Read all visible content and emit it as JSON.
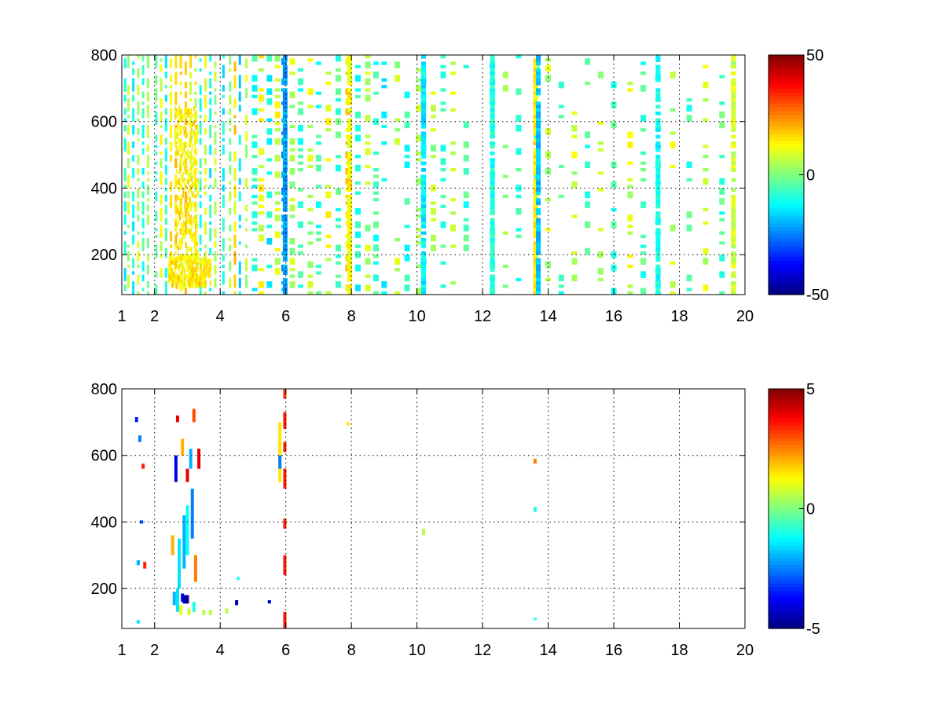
{
  "chart_data": [
    {
      "type": "heatmap",
      "title": "",
      "xlabel": "",
      "ylabel": "",
      "xlim": [
        1,
        20
      ],
      "ylim": [
        80,
        800
      ],
      "grid": true,
      "x_ticks": [
        1,
        2,
        4,
        6,
        8,
        10,
        12,
        14,
        16,
        18,
        20
      ],
      "y_ticks": [
        200,
        400,
        600,
        800
      ],
      "colorbar": {
        "range": [
          -50,
          50
        ],
        "ticks": [
          50,
          0,
          -50
        ],
        "colormap": "jet",
        "placement": "right"
      },
      "sparse_columns": [
        {
          "x": 1.1,
          "level": -10
        },
        {
          "x": 1.2,
          "level": 4
        },
        {
          "x": 1.35,
          "level": -12
        },
        {
          "x": 1.5,
          "level": 6
        },
        {
          "x": 1.65,
          "level": -8
        },
        {
          "x": 1.8,
          "level": 5
        },
        {
          "x": 2.05,
          "level": -6
        },
        {
          "x": 2.2,
          "level": 8
        },
        {
          "x": 2.35,
          "level": -10
        },
        {
          "x": 2.5,
          "level": 12
        },
        {
          "x": 2.65,
          "level": 15
        },
        {
          "x": 2.8,
          "level": 14
        },
        {
          "x": 2.95,
          "level": 16
        },
        {
          "x": 3.1,
          "level": 12
        },
        {
          "x": 3.25,
          "level": 10
        },
        {
          "x": 3.4,
          "level": -8
        },
        {
          "x": 3.55,
          "level": 6
        },
        {
          "x": 3.7,
          "level": -10
        },
        {
          "x": 3.85,
          "level": 5
        },
        {
          "x": 4.1,
          "level": -12
        },
        {
          "x": 4.3,
          "level": 3
        },
        {
          "x": 4.45,
          "level": 14
        },
        {
          "x": 4.6,
          "level": -14
        },
        {
          "x": 4.8,
          "level": 6
        },
        {
          "x": 5.05,
          "level": -9
        },
        {
          "x": 5.25,
          "level": 10
        },
        {
          "x": 5.5,
          "level": -11
        },
        {
          "x": 5.75,
          "level": 8
        },
        {
          "x": 5.95,
          "level": -22
        },
        {
          "x": 6.2,
          "level": 5
        },
        {
          "x": 6.45,
          "level": -7
        },
        {
          "x": 6.75,
          "level": 6
        },
        {
          "x": 7.0,
          "level": -8
        },
        {
          "x": 7.3,
          "level": 9
        },
        {
          "x": 7.6,
          "level": -6
        },
        {
          "x": 7.9,
          "level": 14
        },
        {
          "x": 8.2,
          "level": -9
        },
        {
          "x": 8.5,
          "level": 5
        },
        {
          "x": 8.75,
          "level": -7
        },
        {
          "x": 9.0,
          "level": -12
        },
        {
          "x": 9.4,
          "level": 6
        },
        {
          "x": 9.7,
          "level": -8
        },
        {
          "x": 10.05,
          "level": 7
        },
        {
          "x": 10.2,
          "level": -14
        },
        {
          "x": 10.5,
          "level": 5
        },
        {
          "x": 10.8,
          "level": -6
        },
        {
          "x": 11.1,
          "level": 6
        },
        {
          "x": 11.5,
          "level": -7
        },
        {
          "x": 12.3,
          "level": -10
        },
        {
          "x": 12.7,
          "level": 5
        },
        {
          "x": 13.1,
          "level": -6
        },
        {
          "x": 13.65,
          "level": -14
        },
        {
          "x": 14.0,
          "level": 6
        },
        {
          "x": 14.4,
          "level": -7
        },
        {
          "x": 14.8,
          "level": 7
        },
        {
          "x": 15.2,
          "level": -6
        },
        {
          "x": 15.6,
          "level": 6
        },
        {
          "x": 16.0,
          "level": -8
        },
        {
          "x": 16.5,
          "level": 8
        },
        {
          "x": 16.9,
          "level": -6
        },
        {
          "x": 17.35,
          "level": -10
        },
        {
          "x": 17.8,
          "level": 6
        },
        {
          "x": 18.3,
          "level": -7
        },
        {
          "x": 18.8,
          "level": 6
        },
        {
          "x": 19.3,
          "level": -6
        },
        {
          "x": 19.65,
          "level": 7
        }
      ],
      "dense_bands": [
        {
          "x": 5.98,
          "level": -22
        },
        {
          "x": 7.95,
          "level": 12
        },
        {
          "x": 10.2,
          "level": -14
        },
        {
          "x": 12.3,
          "level": -10
        },
        {
          "x": 13.62,
          "level": 14
        },
        {
          "x": 13.7,
          "level": -18
        },
        {
          "x": 17.35,
          "level": -11
        },
        {
          "x": 19.65,
          "level": 8
        }
      ],
      "blobs": [
        {
          "x0": 2.4,
          "x1": 3.7,
          "y0": 110,
          "y1": 200,
          "level": 15
        },
        {
          "x0": 2.6,
          "x1": 3.3,
          "y0": 200,
          "y1": 650,
          "level": 14
        }
      ]
    },
    {
      "type": "heatmap",
      "title": "",
      "xlabel": "",
      "ylabel": "",
      "xlim": [
        1,
        20
      ],
      "ylim": [
        80,
        800
      ],
      "grid": true,
      "x_ticks": [
        1,
        2,
        4,
        6,
        8,
        10,
        12,
        14,
        16,
        18,
        20
      ],
      "y_ticks": [
        200,
        400,
        600,
        800
      ],
      "colorbar": {
        "range": [
          -5,
          5
        ],
        "ticks": [
          5,
          0,
          -5
        ],
        "colormap": "jet",
        "placement": "right"
      },
      "points": [
        {
          "x": 5.97,
          "y0": 80,
          "y1": 130,
          "v": 3.5
        },
        {
          "x": 5.97,
          "y0": 240,
          "y1": 300,
          "v": 3.5
        },
        {
          "x": 5.97,
          "y0": 380,
          "y1": 410,
          "v": 3.5
        },
        {
          "x": 5.97,
          "y0": 500,
          "y1": 560,
          "v": 3.5
        },
        {
          "x": 5.97,
          "y0": 610,
          "y1": 640,
          "v": 3.5
        },
        {
          "x": 5.97,
          "y0": 680,
          "y1": 730,
          "v": 3.5
        },
        {
          "x": 5.97,
          "y0": 770,
          "y1": 800,
          "v": 3.2
        },
        {
          "x": 5.82,
          "y0": 520,
          "y1": 700,
          "v": 1.5
        },
        {
          "x": 5.82,
          "y0": 560,
          "y1": 600,
          "v": -2.5
        },
        {
          "x": 2.95,
          "y0": 155,
          "y1": 180,
          "v": -5
        },
        {
          "x": 2.9,
          "y0": 155,
          "y1": 180,
          "v": -4.5
        },
        {
          "x": 3.0,
          "y0": 155,
          "y1": 180,
          "v": -4.8
        },
        {
          "x": 2.85,
          "y0": 160,
          "y1": 185,
          "v": -4.2
        },
        {
          "x": 2.6,
          "y0": 150,
          "y1": 190,
          "v": -2
        },
        {
          "x": 2.7,
          "y0": 130,
          "y1": 200,
          "v": -1.5
        },
        {
          "x": 2.8,
          "y0": 120,
          "y1": 150,
          "v": 1
        },
        {
          "x": 3.05,
          "y0": 120,
          "y1": 140,
          "v": 0.8
        },
        {
          "x": 3.2,
          "y0": 130,
          "y1": 160,
          "v": -1
        },
        {
          "x": 3.5,
          "y0": 120,
          "y1": 135,
          "v": 0.5
        },
        {
          "x": 3.7,
          "y0": 120,
          "y1": 135,
          "v": 0.6
        },
        {
          "x": 2.75,
          "y0": 200,
          "y1": 350,
          "v": -1.5
        },
        {
          "x": 2.9,
          "y0": 260,
          "y1": 420,
          "v": -2
        },
        {
          "x": 3.0,
          "y0": 300,
          "y1": 450,
          "v": -1.2
        },
        {
          "x": 3.15,
          "y0": 350,
          "y1": 500,
          "v": -2.5
        },
        {
          "x": 2.65,
          "y0": 520,
          "y1": 600,
          "v": -4
        },
        {
          "x": 3.0,
          "y0": 520,
          "y1": 560,
          "v": 4
        },
        {
          "x": 3.1,
          "y0": 560,
          "y1": 620,
          "v": -2
        },
        {
          "x": 3.2,
          "y0": 700,
          "y1": 740,
          "v": 3
        },
        {
          "x": 2.85,
          "y0": 600,
          "y1": 650,
          "v": 2
        },
        {
          "x": 3.25,
          "y0": 220,
          "y1": 300,
          "v": 2.5
        },
        {
          "x": 2.55,
          "y0": 300,
          "y1": 360,
          "v": 2
        },
        {
          "x": 2.7,
          "y0": 700,
          "y1": 720,
          "v": 4
        },
        {
          "x": 3.35,
          "y0": 560,
          "y1": 620,
          "v": 4
        },
        {
          "x": 1.5,
          "y0": 270,
          "y1": 285,
          "v": -2
        },
        {
          "x": 1.55,
          "y0": 640,
          "y1": 660,
          "v": -2.5
        },
        {
          "x": 1.6,
          "y0": 395,
          "y1": 405,
          "v": -3
        },
        {
          "x": 1.45,
          "y0": 700,
          "y1": 715,
          "v": -3.5
        },
        {
          "x": 1.65,
          "y0": 560,
          "y1": 575,
          "v": 3.5
        },
        {
          "x": 1.7,
          "y0": 260,
          "y1": 280,
          "v": 3.5
        },
        {
          "x": 1.5,
          "y0": 95,
          "y1": 105,
          "v": -1.5
        },
        {
          "x": 4.5,
          "y0": 150,
          "y1": 165,
          "v": -4.5
        },
        {
          "x": 4.55,
          "y0": 225,
          "y1": 235,
          "v": -1
        },
        {
          "x": 4.2,
          "y0": 125,
          "y1": 140,
          "v": 0.5
        },
        {
          "x": 5.5,
          "y0": 155,
          "y1": 165,
          "v": -4
        },
        {
          "x": 7.9,
          "y0": 690,
          "y1": 700,
          "v": 1.5
        },
        {
          "x": 10.2,
          "y0": 360,
          "y1": 380,
          "v": 0.5
        },
        {
          "x": 13.6,
          "y0": 575,
          "y1": 590,
          "v": 2.5
        },
        {
          "x": 13.6,
          "y0": 430,
          "y1": 445,
          "v": -1
        },
        {
          "x": 13.6,
          "y0": 105,
          "y1": 112,
          "v": -1
        }
      ]
    }
  ]
}
